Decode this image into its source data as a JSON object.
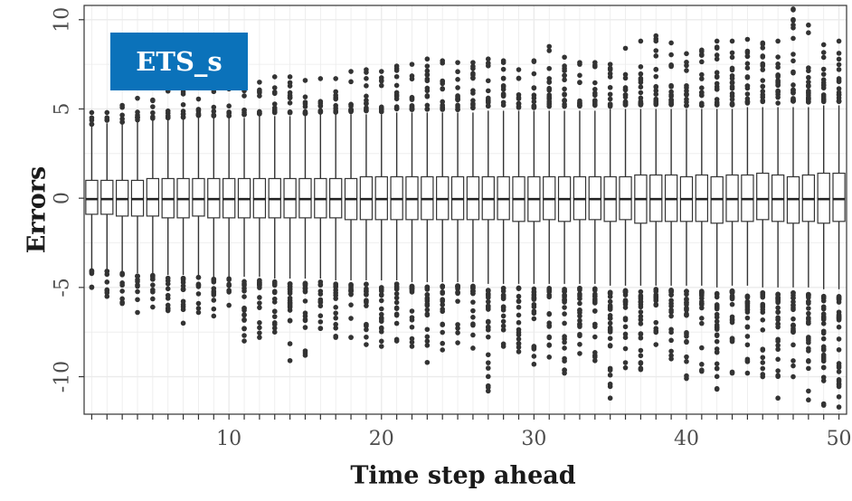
{
  "chart_data": {
    "type": "box",
    "title": "",
    "annotation": "ETS_s",
    "xlabel": "Time step ahead",
    "ylabel": "Errors",
    "xlim": [
      0.5,
      50.5
    ],
    "ylim": [
      -12.1,
      10.8
    ],
    "x_ticks": [
      10,
      20,
      30,
      40,
      50
    ],
    "y_ticks": [
      10,
      5,
      0,
      -5,
      -10
    ],
    "grid": true,
    "colors": {
      "box_fill": "#ffffff",
      "box_stroke": "#333333",
      "outlier": "#333333",
      "grid": "#ebebeb",
      "badge": "#0b72ba"
    },
    "x": [
      1,
      2,
      3,
      4,
      5,
      6,
      7,
      8,
      9,
      10,
      11,
      12,
      13,
      14,
      15,
      16,
      17,
      18,
      19,
      20,
      21,
      22,
      23,
      24,
      25,
      26,
      27,
      28,
      29,
      30,
      31,
      32,
      33,
      34,
      35,
      36,
      37,
      38,
      39,
      40,
      41,
      42,
      43,
      44,
      45,
      46,
      47,
      48,
      49,
      50
    ],
    "q1": [
      -0.9,
      -0.9,
      -1.0,
      -1.0,
      -1.0,
      -1.1,
      -1.1,
      -1.0,
      -1.1,
      -1.1,
      -1.1,
      -1.1,
      -1.1,
      -1.1,
      -1.1,
      -1.1,
      -1.1,
      -1.2,
      -1.2,
      -1.2,
      -1.2,
      -1.2,
      -1.2,
      -1.2,
      -1.2,
      -1.2,
      -1.2,
      -1.2,
      -1.3,
      -1.3,
      -1.2,
      -1.3,
      -1.2,
      -1.2,
      -1.3,
      -1.2,
      -1.4,
      -1.3,
      -1.3,
      -1.3,
      -1.3,
      -1.4,
      -1.3,
      -1.3,
      -1.2,
      -1.3,
      -1.4,
      -1.3,
      -1.4,
      -1.3
    ],
    "median": [
      -0.05,
      -0.05,
      -0.05,
      -0.05,
      -0.05,
      -0.05,
      -0.05,
      -0.05,
      -0.05,
      -0.05,
      -0.05,
      -0.05,
      -0.05,
      -0.05,
      -0.05,
      -0.05,
      -0.05,
      -0.05,
      -0.05,
      -0.05,
      -0.05,
      -0.05,
      -0.05,
      -0.05,
      -0.05,
      -0.05,
      -0.05,
      -0.05,
      -0.05,
      -0.05,
      -0.05,
      -0.05,
      -0.05,
      -0.05,
      -0.05,
      -0.05,
      -0.05,
      -0.05,
      -0.05,
      -0.05,
      -0.05,
      -0.05,
      -0.05,
      -0.05,
      -0.05,
      -0.05,
      -0.05,
      -0.05,
      -0.05,
      -0.05
    ],
    "q3": [
      1.0,
      1.0,
      1.0,
      1.0,
      1.1,
      1.1,
      1.1,
      1.1,
      1.1,
      1.1,
      1.1,
      1.1,
      1.1,
      1.1,
      1.1,
      1.1,
      1.1,
      1.1,
      1.2,
      1.2,
      1.2,
      1.2,
      1.2,
      1.2,
      1.2,
      1.2,
      1.2,
      1.2,
      1.2,
      1.2,
      1.2,
      1.2,
      1.2,
      1.2,
      1.2,
      1.2,
      1.3,
      1.3,
      1.3,
      1.2,
      1.3,
      1.2,
      1.3,
      1.3,
      1.4,
      1.3,
      1.2,
      1.3,
      1.4,
      1.4
    ],
    "whisker_low": [
      -4.0,
      -4.0,
      -4.1,
      -4.2,
      -4.2,
      -4.3,
      -4.3,
      -4.3,
      -4.4,
      -4.4,
      -4.4,
      -4.4,
      -4.5,
      -4.5,
      -4.5,
      -4.5,
      -4.6,
      -4.6,
      -4.6,
      -4.6,
      -4.6,
      -4.7,
      -4.7,
      -4.7,
      -4.7,
      -4.7,
      -4.8,
      -4.8,
      -4.8,
      -4.8,
      -4.8,
      -4.8,
      -4.8,
      -4.8,
      -4.9,
      -4.9,
      -4.9,
      -4.9,
      -4.9,
      -4.9,
      -4.9,
      -5.0,
      -4.9,
      -4.9,
      -5.0,
      -5.0,
      -5.0,
      -5.0,
      -5.1,
      -5.1
    ],
    "whisker_high": [
      4.1,
      4.2,
      4.2,
      4.3,
      4.4,
      4.4,
      4.4,
      4.5,
      4.5,
      4.5,
      4.5,
      4.6,
      4.6,
      4.6,
      4.6,
      4.7,
      4.7,
      4.7,
      4.7,
      4.7,
      4.8,
      4.8,
      4.8,
      4.8,
      4.8,
      4.8,
      4.9,
      4.9,
      4.9,
      4.9,
      4.9,
      4.9,
      4.9,
      4.9,
      5.0,
      5.0,
      5.0,
      5.0,
      5.0,
      5.0,
      5.0,
      5.0,
      5.0,
      5.1,
      5.1,
      5.1,
      5.1,
      5.1,
      5.2,
      5.2
    ],
    "outlier_low_extreme": [
      -5.0,
      -5.5,
      -5.9,
      -6.4,
      -6.1,
      -6.3,
      -7.0,
      -6.4,
      -6.6,
      -6.0,
      -8.0,
      -7.8,
      -7.5,
      -9.1,
      -8.8,
      -7.3,
      -7.8,
      -7.8,
      -8.2,
      -8.3,
      -8.0,
      -8.3,
      -9.2,
      -8.5,
      -8.1,
      -8.4,
      -10.8,
      -8.3,
      -8.6,
      -9.3,
      -8.9,
      -9.8,
      -8.7,
      -9.1,
      -11.2,
      -9.5,
      -9.6,
      -8.2,
      -9.0,
      -10.1,
      -9.7,
      -10.7,
      -9.8,
      -9.8,
      -10.0,
      -11.2,
      -10.0,
      -11.3,
      -11.6,
      -11.7
    ],
    "outlier_high_extreme": [
      4.8,
      4.8,
      5.2,
      5.6,
      5.5,
      6.0,
      6.2,
      6.5,
      6.4,
      6.2,
      6.7,
      6.5,
      6.8,
      6.8,
      6.6,
      6.7,
      6.7,
      7.1,
      7.2,
      7.1,
      7.4,
      7.5,
      7.8,
      7.7,
      7.6,
      7.6,
      7.8,
      7.7,
      7.2,
      7.7,
      8.5,
      7.9,
      7.6,
      7.6,
      7.5,
      8.4,
      8.8,
      9.1,
      8.7,
      8.1,
      8.3,
      8.8,
      8.8,
      8.9,
      8.7,
      8.8,
      10.6,
      9.7,
      8.6,
      8.8
    ]
  }
}
